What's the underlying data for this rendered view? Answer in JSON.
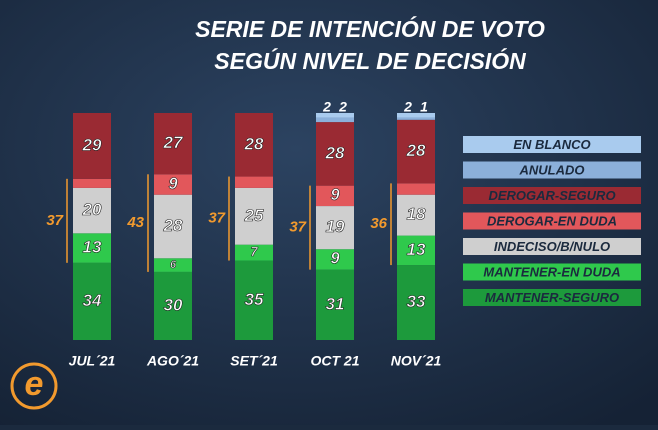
{
  "chart_data": {
    "type": "stacked-bar",
    "title": [
      "SERIE DE INTENCIÓN DE VOTO",
      "SEGÚN NIVEL DE DECISIÓN"
    ],
    "categories": [
      "JUL´21",
      "AGO´21",
      "SET´21",
      "OCT 21",
      "NOV´21"
    ],
    "series": [
      {
        "name": "MANTENER-SEGURO",
        "color": "#1d9a3c",
        "values": [
          34,
          30,
          35,
          31,
          33
        ]
      },
      {
        "name": "MANTENER-EN DUDA",
        "color": "#2fc94c",
        "values": [
          13,
          6,
          7,
          9,
          13
        ]
      },
      {
        "name": "INDECISO/B/NULO",
        "color": "#cfcfcf",
        "values": [
          20,
          28,
          25,
          19,
          18
        ]
      },
      {
        "name": "DEROGAR-EN DUDA",
        "color": "#e2575b",
        "values": [
          4,
          9,
          5,
          9,
          5
        ]
      },
      {
        "name": "DEROGAR-SEGURO",
        "color": "#9a2a33",
        "values": [
          29,
          27,
          28,
          28,
          28
        ]
      },
      {
        "name": "ANULADO",
        "color": "#8cb0da",
        "values": [
          null,
          null,
          null,
          2,
          1
        ]
      },
      {
        "name": "EN BLANCO",
        "color": "#a9cbee",
        "values": [
          null,
          null,
          null,
          2,
          2
        ]
      }
    ],
    "undecided_totals": [
      37,
      43,
      37,
      37,
      36
    ],
    "legend": "right"
  }
}
